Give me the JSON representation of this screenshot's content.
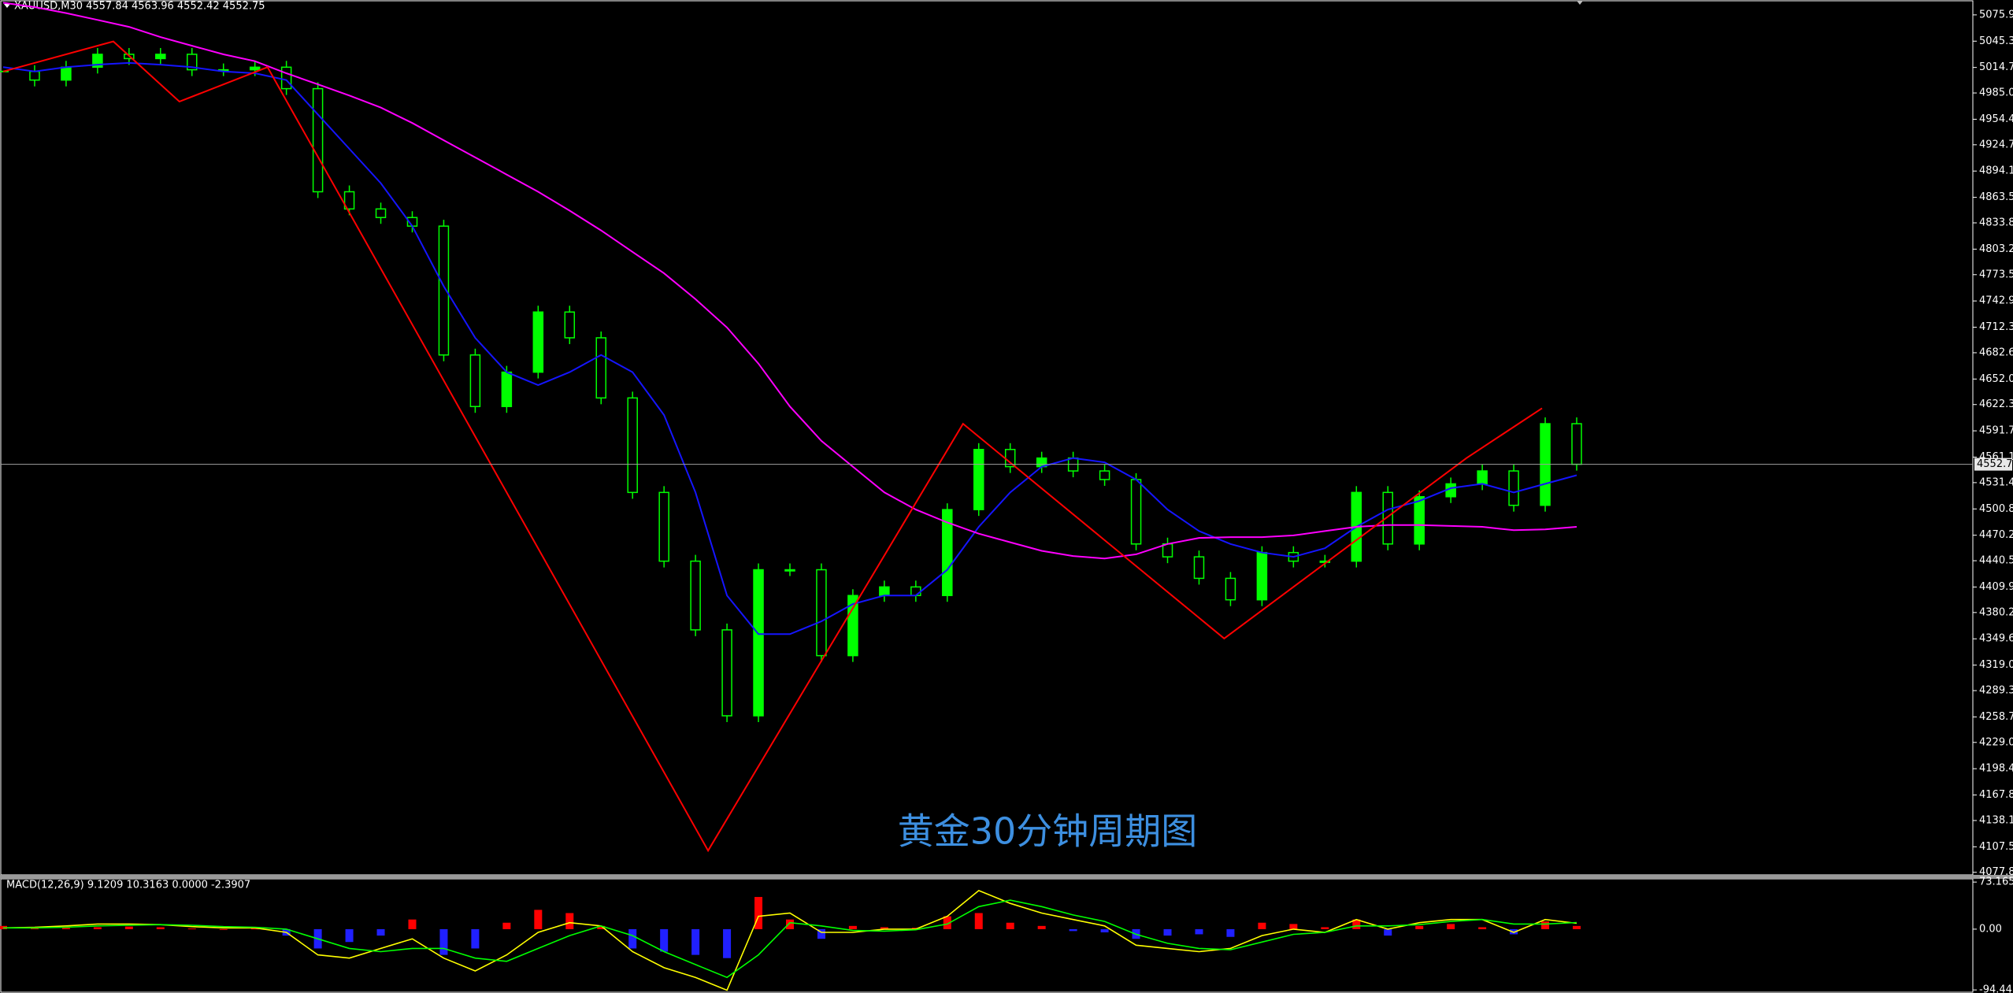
{
  "chart_data": [
    {
      "type": "candlestick",
      "title": "XAUUSD,M30  4557.84 4563.96 4552.42 4552.75",
      "annotation": "黄金30分钟周期图",
      "ylim": [
        4074.8,
        5092.3
      ],
      "yticks": [
        {
          "value": 5075.9,
          "label": "5075.90"
        },
        {
          "value": 5045.3,
          "label": "5045.30"
        },
        {
          "value": 5014.7,
          "label": "5014.70"
        },
        {
          "value": 4985,
          "label": "4985.00"
        },
        {
          "value": 4954.4,
          "label": "4954.40"
        },
        {
          "value": 4924.7,
          "label": "4924.70"
        },
        {
          "value": 4894.1,
          "label": "4894.10"
        },
        {
          "value": 4863.5,
          "label": "4863.50"
        },
        {
          "value": 4833.8,
          "label": "4833.80"
        },
        {
          "value": 4803.2,
          "label": "4803.20"
        },
        {
          "value": 4773.5,
          "label": "4773.50"
        },
        {
          "value": 4742.9,
          "label": "4742.90"
        },
        {
          "value": 4712.3,
          "label": "4712.30"
        },
        {
          "value": 4682.6,
          "label": "4682.60"
        },
        {
          "value": 4652,
          "label": "4652.00"
        },
        {
          "value": 4622.3,
          "label": "4622.30"
        },
        {
          "value": 4591.7,
          "label": "4591.70"
        },
        {
          "value": 4561.1,
          "label": "4561.10"
        },
        {
          "value": 4531.4,
          "label": "4531.40"
        },
        {
          "value": 4500.8,
          "label": "4500.80"
        },
        {
          "value": 4470.2,
          "label": "4470.20"
        },
        {
          "value": 4440.5,
          "label": "4440.50"
        },
        {
          "value": 4409.9,
          "label": "4409.90"
        },
        {
          "value": 4380.2,
          "label": "4380.20"
        },
        {
          "value": 4349.6,
          "label": "4349.60"
        },
        {
          "value": 4319,
          "label": "4319.00"
        },
        {
          "value": 4289.3,
          "label": "4289.30"
        },
        {
          "value": 4258.7,
          "label": "4258.70"
        },
        {
          "value": 4229,
          "label": "4229.00"
        },
        {
          "value": 4198.4,
          "label": "4198.40"
        },
        {
          "value": 4167.8,
          "label": "4167.80"
        },
        {
          "value": 4138.1,
          "label": "4138.10"
        },
        {
          "value": 4107.5,
          "label": "4107.50"
        },
        {
          "value": 4077.8,
          "label": "4077.80"
        }
      ],
      "series": [
        {
          "color": "#00ff00",
          "values": [
            5010,
            5000,
            5015,
            5030,
            5025,
            5030,
            5012,
            5012,
            5015,
            4990,
            4870,
            4850,
            4840,
            4830,
            4680,
            4620,
            4660,
            4730,
            4700,
            4630,
            4520,
            4440,
            4360,
            4260,
            4430,
            4430,
            4330,
            4400,
            4410,
            4400,
            4500,
            4570,
            4550,
            4560,
            4545,
            4535,
            4460,
            4445,
            4420,
            4395,
            4450,
            4440,
            4440,
            4520,
            4460,
            4515,
            4530,
            4545,
            4505,
            4600,
            4552.75
          ]
        },
        {
          "color": "#1515ff",
          "values": [
            5015,
            5010,
            5015,
            5018,
            5020,
            5018,
            5015,
            5010,
            5008,
            5000,
            4960,
            4920,
            4880,
            4830,
            4760,
            4700,
            4660,
            4645,
            4660,
            4680,
            4660,
            4610,
            4520,
            4400,
            4355,
            4355,
            4370,
            4390,
            4400,
            4400,
            4430,
            4480,
            4520,
            4550,
            4560,
            4555,
            4535,
            4500,
            4475,
            4460,
            4450,
            4445,
            4455,
            4480,
            4500,
            4510,
            4525,
            4530,
            4520,
            4530,
            4540
          ]
        },
        {
          "color": "#ff00ff",
          "values": [
            5090,
            5085,
            5078,
            5070,
            5062,
            5050,
            5040,
            5030,
            5022,
            5008,
            4995,
            4982,
            4968,
            4950,
            4930,
            4910,
            4890,
            4870,
            4848,
            4825,
            4800,
            4775,
            4745,
            4712,
            4670,
            4620,
            4580,
            4550,
            4520,
            4500,
            4485,
            4472,
            4462,
            4452,
            4446,
            4443,
            4448,
            4460,
            4467,
            4468,
            4468,
            4470,
            4475,
            4480,
            4482,
            4482,
            4481,
            4480,
            4476,
            4477,
            4480
          ]
        },
        {
          "color": "#ff0000",
          "x": [
            0,
            3.5,
            5.6,
            8.4,
            22.4,
            30.5,
            38.8,
            46.5,
            48.9
          ],
          "values": [
            5010,
            5045,
            4975,
            5015,
            4103,
            4600,
            4350,
            4560,
            4618
          ]
        }
      ]
    },
    {
      "type": "macd",
      "title": "MACD(12,26,9) 9.1209 10.3163 0.0000 -2.3907",
      "ylim": [
        -98,
        77
      ],
      "yticks": [
        73.1651,
        {
          "value": 0,
          "label": "0.00"
        },
        -94.4416
      ],
      "series": [
        {
          "positive_color": "#ff0000",
          "negative_color": "#2020ff",
          "values": [
            5,
            3,
            2,
            3,
            4,
            3,
            1,
            0,
            1,
            -10,
            -30,
            -20,
            -10,
            15,
            -40,
            -30,
            10,
            30,
            25,
            5,
            -30,
            -35,
            -40,
            -45,
            50,
            15,
            -15,
            5,
            3,
            2,
            20,
            25,
            10,
            5,
            -3,
            -5,
            -15,
            -10,
            -8,
            -12,
            10,
            8,
            3,
            15,
            -10,
            5,
            8,
            3,
            -8,
            12,
            5
          ]
        },
        {
          "color": "#ffff00",
          "values": [
            2,
            3,
            5,
            8,
            8,
            7,
            4,
            2,
            2,
            -5,
            -40,
            -45,
            -30,
            -15,
            -45,
            -65,
            -40,
            -5,
            10,
            5,
            -35,
            -60,
            -75,
            -95,
            20,
            25,
            -5,
            -5,
            0,
            0,
            20,
            60,
            40,
            25,
            15,
            5,
            -25,
            -30,
            -35,
            -30,
            -10,
            0,
            -5,
            15,
            0,
            10,
            15,
            15,
            -5,
            15,
            9.1209
          ]
        },
        {
          "color": "#00ff00",
          "values": [
            2,
            2,
            3,
            5,
            6,
            7,
            6,
            4,
            3,
            0,
            -15,
            -30,
            -35,
            -30,
            -30,
            -45,
            -50,
            -30,
            -10,
            5,
            -10,
            -35,
            -55,
            -75,
            -40,
            10,
            5,
            -2,
            -3,
            -1,
            8,
            35,
            45,
            35,
            22,
            12,
            -8,
            -22,
            -30,
            -32,
            -20,
            -8,
            -5,
            5,
            5,
            7,
            12,
            15,
            8,
            8,
            10.3163
          ]
        }
      ]
    }
  ]
}
